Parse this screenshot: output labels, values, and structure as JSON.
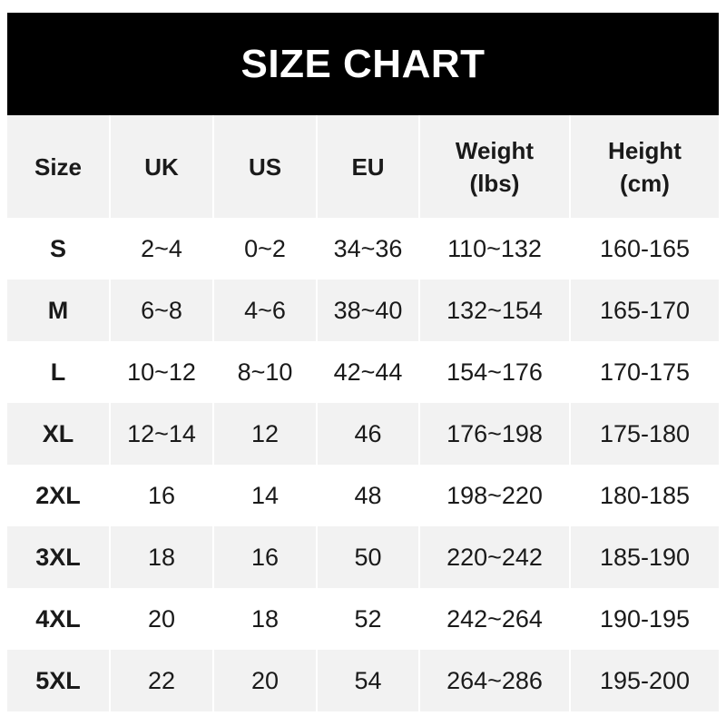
{
  "title": "SIZE CHART",
  "columns": [
    {
      "line1": "Size",
      "line2": ""
    },
    {
      "line1": "UK",
      "line2": ""
    },
    {
      "line1": "US",
      "line2": ""
    },
    {
      "line1": "EU",
      "line2": ""
    },
    {
      "line1": "Weight",
      "line2": "(lbs)"
    },
    {
      "line1": "Height",
      "line2": "(cm)"
    }
  ],
  "rows": [
    [
      "S",
      "2~4",
      "0~2",
      "34~36",
      "110~132",
      "160-165"
    ],
    [
      "M",
      "6~8",
      "4~6",
      "38~40",
      "132~154",
      "165-170"
    ],
    [
      "L",
      "10~12",
      "8~10",
      "42~44",
      "154~176",
      "170-175"
    ],
    [
      "XL",
      "12~14",
      "12",
      "46",
      "176~198",
      "175-180"
    ],
    [
      "2XL",
      "16",
      "14",
      "48",
      "198~220",
      "180-185"
    ],
    [
      "3XL",
      "18",
      "16",
      "50",
      "220~242",
      "185-190"
    ],
    [
      "4XL",
      "20",
      "18",
      "52",
      "242~264",
      "190-195"
    ],
    [
      "5XL",
      "22",
      "20",
      "54",
      "264~286",
      "195-200"
    ]
  ],
  "colors": {
    "banner": "#000000",
    "header_bg": "#f2f2f2",
    "stripe": "#f2f2f2"
  }
}
